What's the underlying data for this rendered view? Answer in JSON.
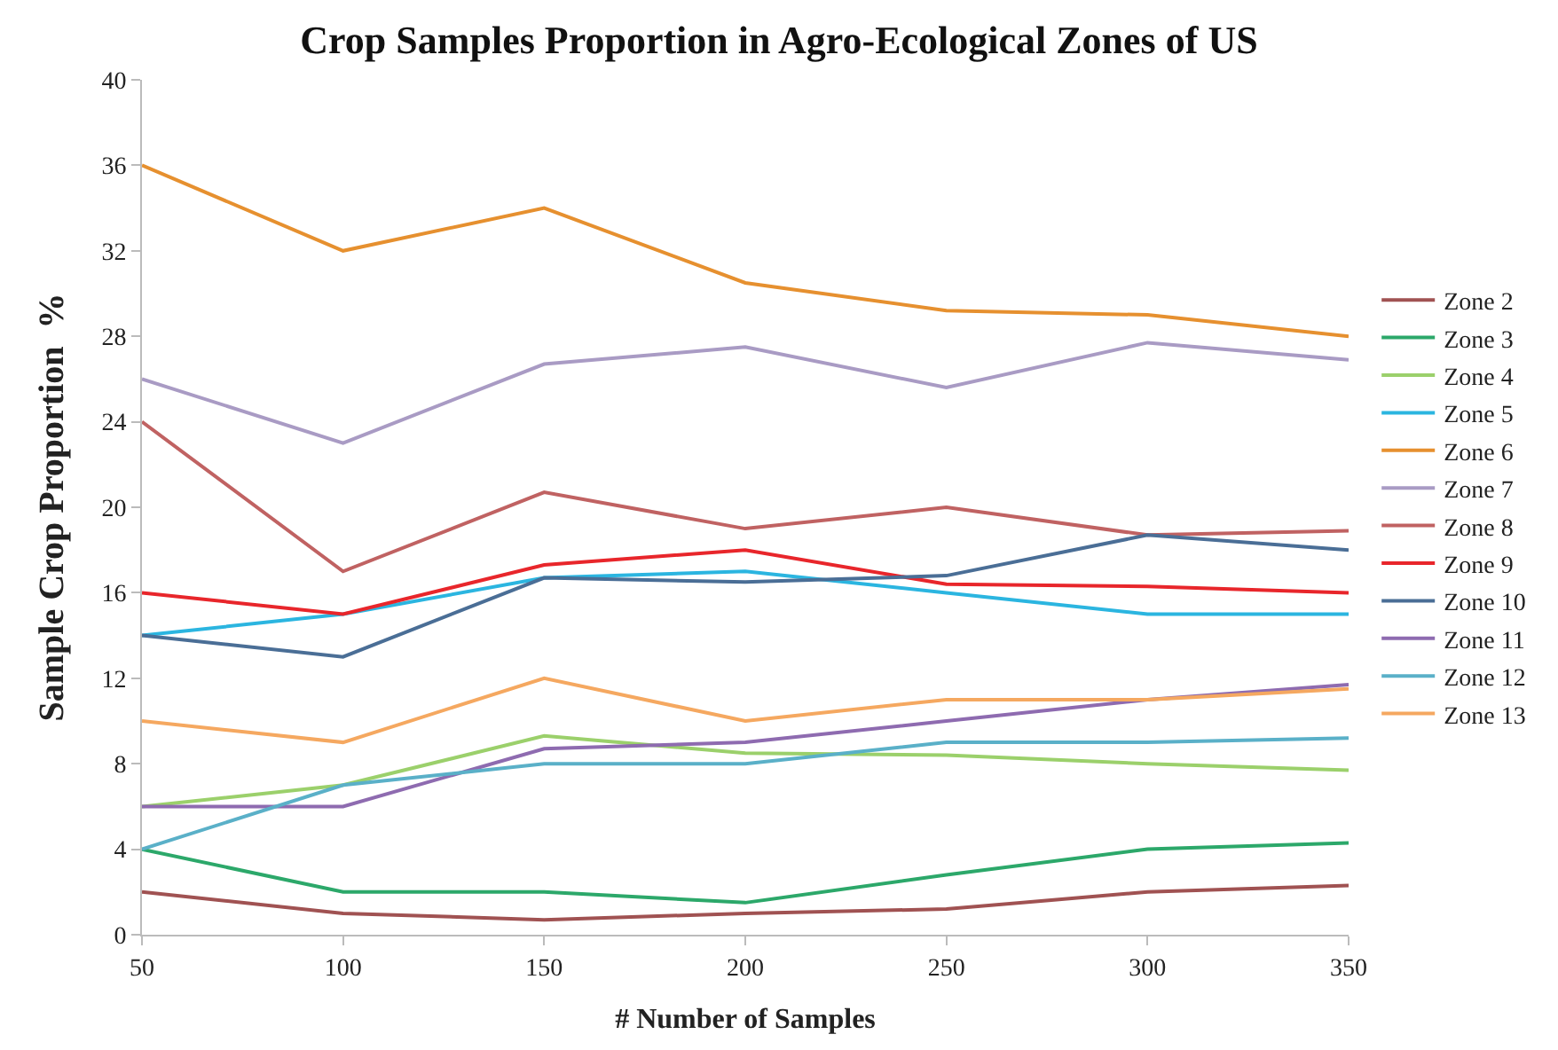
{
  "chart_data": {
    "type": "line",
    "title": "Crop Samples Proportion in Agro-Ecological Zones of US",
    "xlabel": "# Number of Samples",
    "ylabel": "Sample Crop Proportion  %",
    "x": [
      50,
      100,
      150,
      200,
      250,
      300,
      350
    ],
    "xlim": [
      50,
      350
    ],
    "xticks": [
      50,
      100,
      150,
      200,
      250,
      300,
      350
    ],
    "ylim": [
      0,
      40
    ],
    "yticks": [
      0,
      4,
      8,
      12,
      16,
      20,
      24,
      28,
      32,
      36,
      40
    ],
    "grid": false,
    "legend": "right",
    "marker": "none",
    "line_style": "solid",
    "series": [
      {
        "name": "Zone 2",
        "color": "#a05252",
        "values": [
          2,
          1,
          0.7,
          1,
          1.2,
          2,
          2.3
        ]
      },
      {
        "name": "Zone 3",
        "color": "#2ca86a",
        "values": [
          4,
          2,
          2,
          1.5,
          2.8,
          4,
          4.3
        ]
      },
      {
        "name": "Zone 4",
        "color": "#9bd06b",
        "values": [
          6,
          7,
          9.3,
          8.5,
          8.4,
          8,
          7.7
        ]
      },
      {
        "name": "Zone 5",
        "color": "#2bb5e0",
        "values": [
          14,
          15,
          16.7,
          17,
          16,
          15,
          15
        ]
      },
      {
        "name": "Zone 6",
        "color": "#e6902f",
        "values": [
          36,
          32,
          34,
          30.5,
          29.2,
          29,
          28
        ]
      },
      {
        "name": "Zone 7",
        "color": "#a99bc4",
        "values": [
          26,
          23,
          26.7,
          27.5,
          25.6,
          27.7,
          26.9
        ]
      },
      {
        "name": "Zone 8",
        "color": "#c06262",
        "values": [
          24,
          17,
          20.7,
          19,
          20,
          18.7,
          18.9
        ]
      },
      {
        "name": "Zone 9",
        "color": "#e8262b",
        "values": [
          16,
          15,
          17.3,
          18,
          16.4,
          16.3,
          16
        ]
      },
      {
        "name": "Zone 10",
        "color": "#4a6e96",
        "values": [
          14,
          13,
          16.7,
          16.5,
          16.8,
          18.7,
          18
        ]
      },
      {
        "name": "Zone 11",
        "color": "#8e6bb0",
        "values": [
          6,
          6,
          8.7,
          9,
          10,
          11,
          11.7
        ]
      },
      {
        "name": "Zone 12",
        "color": "#5ab0c8",
        "values": [
          4,
          7,
          8,
          8,
          9,
          9,
          9.2
        ]
      },
      {
        "name": "Zone 13",
        "color": "#f5a860",
        "values": [
          10,
          9,
          12,
          10,
          11,
          11,
          11.5
        ]
      }
    ]
  }
}
